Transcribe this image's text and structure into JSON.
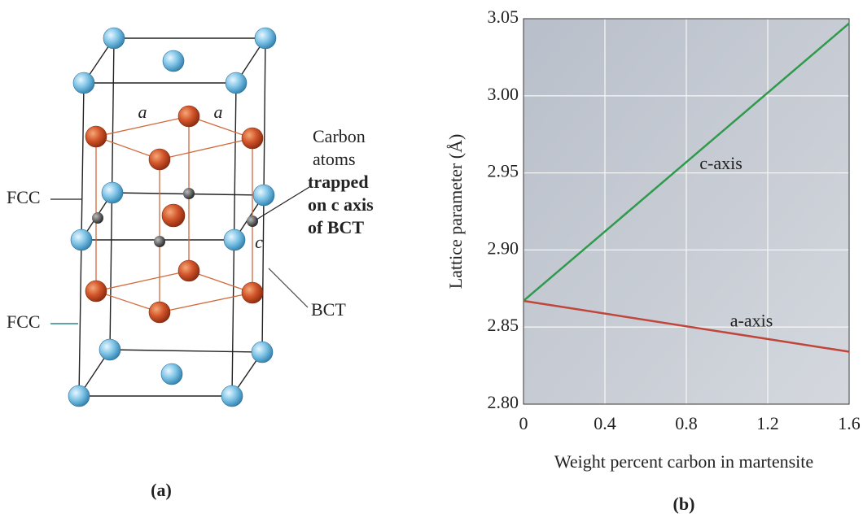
{
  "diagram": {
    "panel_label": "(a)",
    "edge_labels": [
      "a",
      "a",
      "c"
    ],
    "fcc_labels": [
      "FCC",
      "FCC"
    ],
    "bct_label": "BCT",
    "carbon_note": [
      "Carbon",
      "atoms",
      "trapped",
      "on c axis",
      "of BCT"
    ]
  },
  "chart_data": {
    "type": "line",
    "panel_label": "(b)",
    "xlabel": "Weight percent carbon in martensite",
    "ylabel": "Lattice parameter (Å)",
    "x": [
      0,
      1.6
    ],
    "series": [
      {
        "name": "c-axis",
        "color": "#2f9a4c",
        "values": [
          2.867,
          3.047
        ]
      },
      {
        "name": "a-axis",
        "color": "#c0463c",
        "values": [
          2.867,
          2.834
        ]
      }
    ],
    "annotations": [
      {
        "text": "c-axis",
        "x": 0.97,
        "y": 2.955
      },
      {
        "text": "a-axis",
        "x": 1.12,
        "y": 2.853
      }
    ],
    "xlim": [
      0,
      1.6
    ],
    "ylim": [
      2.8,
      3.05
    ],
    "xticks": [
      0,
      0.4,
      0.8,
      1.2,
      1.6
    ],
    "yticks": [
      {
        "value": 2.8,
        "label": "2.80"
      },
      2.85,
      {
        "value": 2.9,
        "label": "2.90"
      },
      2.95,
      {
        "value": 3.0,
        "label": "3.00"
      },
      3.05
    ],
    "grid": true
  }
}
